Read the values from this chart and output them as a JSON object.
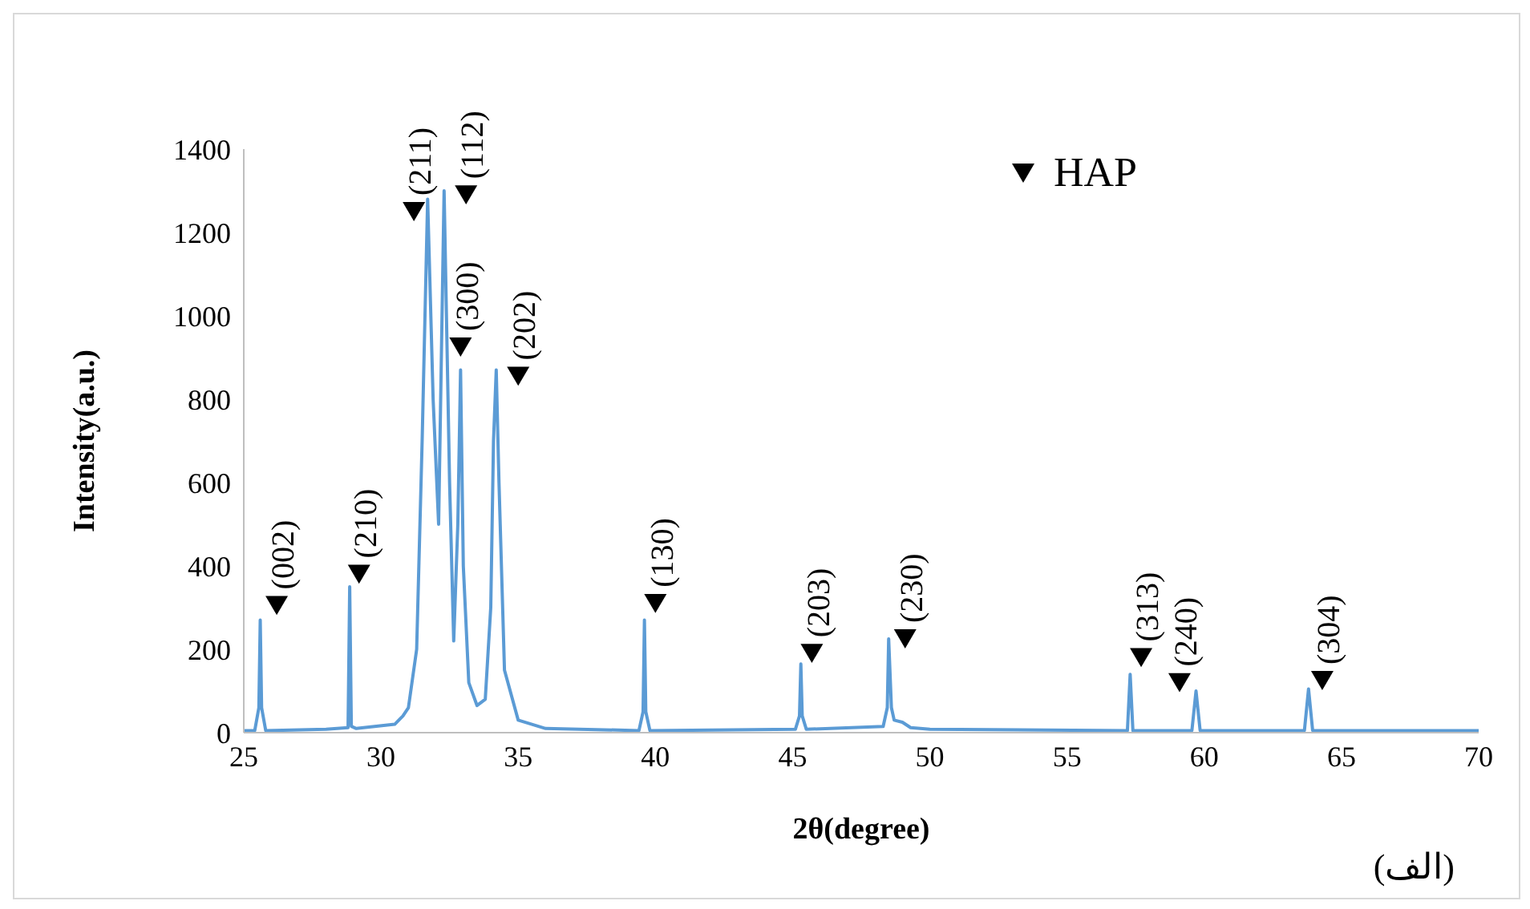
{
  "chart_data": {
    "type": "line",
    "xlabel": "2θ(degree)",
    "ylabel": "Intensity(a.u.)",
    "xlim": [
      25,
      70
    ],
    "xticks": [
      25,
      30,
      35,
      40,
      45,
      50,
      55,
      60,
      65,
      70
    ],
    "ylim": [
      0,
      1400
    ],
    "yticks": [
      0,
      200,
      400,
      600,
      800,
      1000,
      1200,
      1400
    ],
    "grid": false,
    "legend": "top right",
    "marker": "none",
    "series": [
      {
        "color": "#5b9bd5",
        "x": [
          25,
          25.4,
          25.55,
          25.6,
          25.65,
          25.8,
          28.0,
          28.8,
          28.86,
          28.92,
          29.1,
          30.5,
          30.8,
          31.0,
          31.3,
          31.5,
          31.7,
          31.9,
          32.1,
          32.3,
          32.5,
          32.65,
          32.8,
          32.9,
          33.0,
          33.2,
          33.5,
          33.8,
          34.0,
          34.1,
          34.2,
          34.3,
          34.5,
          35.0,
          36,
          39.4,
          39.55,
          39.6,
          39.65,
          39.8,
          45.1,
          45.25,
          45.3,
          45.35,
          45.5,
          48.3,
          48.45,
          48.5,
          48.6,
          48.7,
          49.0,
          49.3,
          50,
          57.2,
          57.3,
          57.4,
          59.55,
          59.7,
          59.85,
          63.65,
          63.8,
          63.95,
          70
        ],
        "values": [
          5,
          5,
          60,
          270,
          60,
          5,
          8,
          12,
          350,
          15,
          10,
          20,
          40,
          60,
          200,
          700,
          1280,
          800,
          500,
          1300,
          600,
          220,
          500,
          870,
          400,
          120,
          65,
          80,
          300,
          700,
          870,
          600,
          150,
          30,
          10,
          5,
          50,
          270,
          50,
          5,
          8,
          40,
          165,
          40,
          8,
          15,
          60,
          225,
          60,
          30,
          25,
          12,
          8,
          5,
          140,
          5,
          5,
          100,
          5,
          5,
          105,
          5,
          5
        ]
      },
      {
        "type": "scatter",
        "name": "HAP",
        "marker": "triangle",
        "color": "#000000",
        "x": [
          26.2,
          29.2,
          31.2,
          33.1,
          32.9,
          35.0,
          40.0,
          45.7,
          49.1,
          57.7,
          59.1,
          64.3
        ],
        "values": [
          305,
          380,
          1250,
          1290,
          925,
          855,
          310,
          190,
          225,
          180,
          120,
          125
        ]
      }
    ],
    "annotations": [
      {
        "text": "(002)",
        "x": 26.2,
        "y": 305
      },
      {
        "text": "(210)",
        "x": 29.2,
        "y": 380
      },
      {
        "text": "(211)",
        "x": 31.2,
        "y": 1250
      },
      {
        "text": "(112)",
        "x": 33.1,
        "y": 1290
      },
      {
        "text": "(300)",
        "x": 32.9,
        "y": 925
      },
      {
        "text": "(202)",
        "x": 35.0,
        "y": 855
      },
      {
        "text": "(130)",
        "x": 40.0,
        "y": 310
      },
      {
        "text": "(203)",
        "x": 45.7,
        "y": 190
      },
      {
        "text": "(230)",
        "x": 49.1,
        "y": 225
      },
      {
        "text": "(313)",
        "x": 57.7,
        "y": 180
      },
      {
        "text": "(240)",
        "x": 59.1,
        "y": 120
      },
      {
        "text": "(304)",
        "x": 64.3,
        "y": 125
      },
      "(الف)"
    ]
  }
}
